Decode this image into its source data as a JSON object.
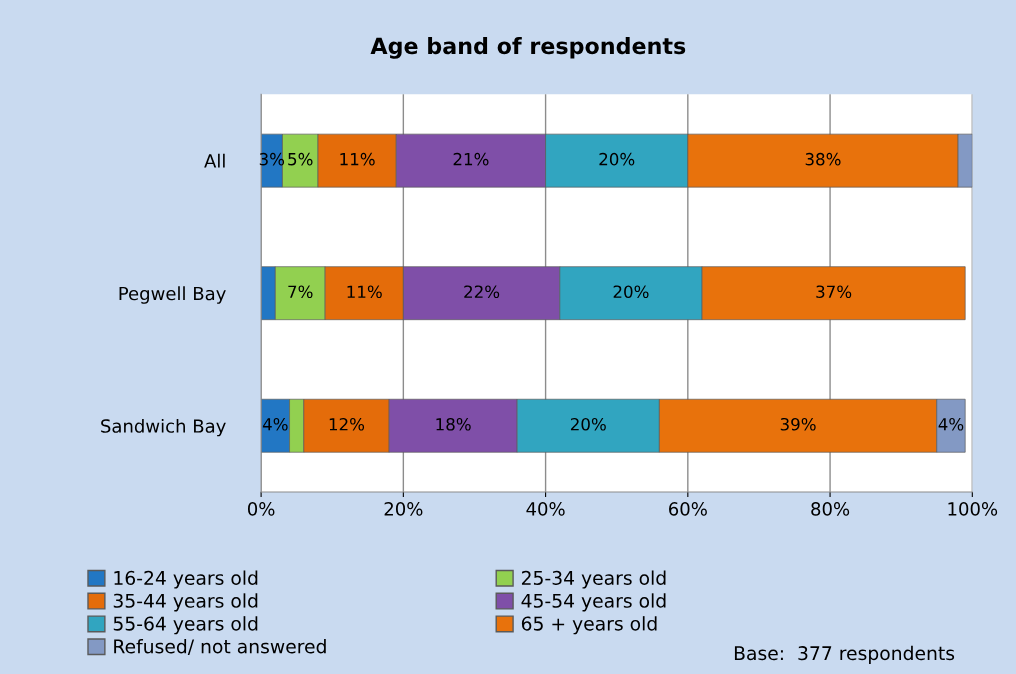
{
  "chart_data": {
    "type": "bar",
    "title": "Age band of respondents",
    "orientation": "horizontal",
    "stacked": true,
    "categories": [
      "All",
      "Pegwell Bay",
      "Sandwich Bay"
    ],
    "series": [
      {
        "name": "16-24 years old",
        "color": "#2277c4",
        "values": [
          3,
          2,
          4
        ],
        "value_labels": [
          "3%",
          null,
          "4%"
        ]
      },
      {
        "name": "25-34 years old",
        "color": "#92d050",
        "values": [
          5,
          7,
          2
        ],
        "value_labels": [
          "5%",
          "7%",
          null
        ]
      },
      {
        "name": "35-44 years old",
        "color": "#e46c0a",
        "values": [
          11,
          11,
          12
        ],
        "value_labels": [
          "11%",
          "11%",
          "12%"
        ]
      },
      {
        "name": "45-54 years old",
        "color": "#7f4fa8",
        "values": [
          21,
          22,
          18
        ],
        "value_labels": [
          "21%",
          "22%",
          "18%"
        ]
      },
      {
        "name": "55-64 years old",
        "color": "#31a5c0",
        "values": [
          20,
          20,
          20
        ],
        "value_labels": [
          "20%",
          "20%",
          "20%"
        ]
      },
      {
        "name": "65 + years old",
        "color": "#e8720c",
        "values": [
          38,
          37,
          39
        ],
        "value_labels": [
          "38%",
          "37%",
          "39%"
        ]
      },
      {
        "name": "Refused/ not answered",
        "color": "#8399c4",
        "values": [
          2,
          0,
          4
        ],
        "value_labels": [
          null,
          null,
          "4%"
        ]
      }
    ],
    "xlim": [
      0,
      100
    ],
    "xticks": [
      {
        "value": 0,
        "label": "0%"
      },
      {
        "value": 20,
        "label": "20%"
      },
      {
        "value": 40,
        "label": "40%"
      },
      {
        "value": 60,
        "label": "60%"
      },
      {
        "value": 80,
        "label": "80%"
      },
      {
        "value": 100,
        "label": "100%"
      }
    ],
    "grid": "x",
    "legend": "bottom",
    "annotations": [
      "Base:  377 respondents"
    ]
  }
}
